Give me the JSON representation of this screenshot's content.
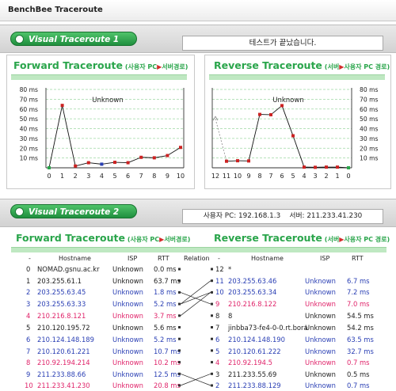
{
  "app": {
    "title": "BenchBee Traceroute"
  },
  "colors": {
    "green": "#2aa54b",
    "red": "#d42b2b",
    "blue": "#2a3fb4",
    "pink": "#e0246a"
  },
  "section1": {
    "label": "Visual Traceroute 1",
    "status": "테스트가 끝났습니다.",
    "forward": {
      "title": "Forward Traceroute",
      "sub_a": "(사용자 PC",
      "arrow": "▶",
      "sub_b": "서버경로)",
      "chart_label": "Unknown",
      "y_ticks": [
        "80 ms",
        "70 ms",
        "60 ms",
        "50 ms",
        "40 ms",
        "30 ms",
        "20 ms",
        "10 ms"
      ],
      "x_ticks": [
        "0",
        "1",
        "2",
        "3",
        "4",
        "5",
        "6",
        "7",
        "8",
        "9",
        "10"
      ]
    },
    "reverse": {
      "title": "Reverse Traceroute",
      "sub_a": "(서버",
      "arrow": "▶",
      "sub_b": "사용자 PC 경로)",
      "chart_label": "Unknown",
      "y_ticks": [
        "80 ms",
        "70 ms",
        "60 ms",
        "50 ms",
        "40 ms",
        "30 ms",
        "20 ms",
        "10 ms"
      ],
      "x_ticks": [
        "12",
        "11",
        "10",
        "9",
        "8",
        "7",
        "6",
        "5",
        "4",
        "3",
        "2",
        "1",
        "0"
      ]
    }
  },
  "chart_data": [
    {
      "type": "line",
      "title": "Forward Traceroute",
      "x": [
        0,
        1,
        2,
        3,
        4,
        5,
        6,
        7,
        8,
        9,
        10
      ],
      "y": [
        0.0,
        63.7,
        1.8,
        5.2,
        3.7,
        5.6,
        5.2,
        10.7,
        10.2,
        12.5,
        20.8
      ],
      "ylim": [
        0,
        80
      ]
    },
    {
      "type": "line",
      "title": "Reverse Traceroute",
      "x": [
        12,
        11,
        10,
        9,
        8,
        7,
        6,
        5,
        4,
        3,
        2,
        1,
        0
      ],
      "y": [
        null,
        6.7,
        7.2,
        7.0,
        54.5,
        54.2,
        63.5,
        32.7,
        0.7,
        0.5,
        0.7,
        0.7,
        0.0
      ],
      "ylim": [
        0,
        80
      ]
    }
  ],
  "section2": {
    "label": "Visual Traceroute 2",
    "user_label": "사용자 PC:",
    "user_ip": "192.168.1.3",
    "server_label": "서버:",
    "server_ip": "211.233.41.230",
    "forward": {
      "title": "Forward Traceroute",
      "sub_a": "(사용자 PC",
      "arrow": "▶",
      "sub_b": "서버경로)"
    },
    "reverse": {
      "title": "Reverse Traceroute",
      "sub_a": "(서버",
      "arrow": "▶",
      "sub_b": "사용자 PC 경로)"
    },
    "headers": {
      "dash": "-",
      "hostname": "Hostname",
      "isp": "ISP",
      "rtt": "RTT",
      "relation": "Relation"
    },
    "forward_rows": [
      {
        "hop": "0",
        "host": "NOMAD.gsnu.ac.kr",
        "isp": "Unknown",
        "rtt": "0.0 ms",
        "color": "black"
      },
      {
        "hop": "1",
        "host": "203.255.61.1",
        "isp": "Unknown",
        "rtt": "63.7 ms",
        "color": "black"
      },
      {
        "hop": "2",
        "host": "203.255.63.45",
        "isp": "Unknown",
        "rtt": "1.8 ms",
        "color": "blue"
      },
      {
        "hop": "3",
        "host": "203.255.63.33",
        "isp": "Unknown",
        "rtt": "5.2 ms",
        "color": "blue"
      },
      {
        "hop": "4",
        "host": "210.216.8.121",
        "isp": "Unknown",
        "rtt": "3.7 ms",
        "color": "pink"
      },
      {
        "hop": "5",
        "host": "210.120.195.72",
        "isp": "Unknown",
        "rtt": "5.6 ms",
        "color": "black"
      },
      {
        "hop": "6",
        "host": "210.124.148.189",
        "isp": "Unknown",
        "rtt": "5.2 ms",
        "color": "blue"
      },
      {
        "hop": "7",
        "host": "210.120.61.221",
        "isp": "Unknown",
        "rtt": "10.7 ms",
        "color": "blue"
      },
      {
        "hop": "8",
        "host": "210.92.194.214",
        "isp": "Unknown",
        "rtt": "10.2 ms",
        "color": "pink"
      },
      {
        "hop": "9",
        "host": "211.233.88.66",
        "isp": "Unknown",
        "rtt": "12.5 ms",
        "color": "blue"
      },
      {
        "hop": "10",
        "host": "211.233.41.230",
        "isp": "Unknown",
        "rtt": "20.8 ms",
        "color": "pink"
      }
    ],
    "reverse_rows": [
      {
        "hop": "12",
        "host": "*",
        "isp": "",
        "rtt": "",
        "color": "black"
      },
      {
        "hop": "11",
        "host": "203.255.63.46",
        "isp": "Unknown",
        "rtt": "6.7 ms",
        "color": "blue"
      },
      {
        "hop": "10",
        "host": "203.255.63.34",
        "isp": "Unknown",
        "rtt": "7.2 ms",
        "color": "blue"
      },
      {
        "hop": "9",
        "host": "210.216.8.122",
        "isp": "Unknown",
        "rtt": "7.0 ms",
        "color": "pink"
      },
      {
        "hop": "8",
        "host": "8",
        "isp": "Unknown",
        "rtt": "54.5 ms",
        "color": "black"
      },
      {
        "hop": "7",
        "host": "jinbba73-fe4-0-0.rt.bora",
        "isp": "Unknown",
        "rtt": "54.2 ms",
        "color": "black"
      },
      {
        "hop": "6",
        "host": "210.124.148.190",
        "isp": "Unknown",
        "rtt": "63.5 ms",
        "color": "blue"
      },
      {
        "hop": "5",
        "host": "210.120.61.222",
        "isp": "Unknown",
        "rtt": "32.7 ms",
        "color": "blue"
      },
      {
        "hop": "4",
        "host": "210.92.194.5",
        "isp": "Unknown",
        "rtt": "0.7 ms",
        "color": "pink"
      },
      {
        "hop": "3",
        "host": "211.233.55.69",
        "isp": "Unknown",
        "rtt": "0.5 ms",
        "color": "black"
      },
      {
        "hop": "2",
        "host": "211.233.88.129",
        "isp": "Unknown",
        "rtt": "0.7 ms",
        "color": "blue"
      }
    ]
  }
}
